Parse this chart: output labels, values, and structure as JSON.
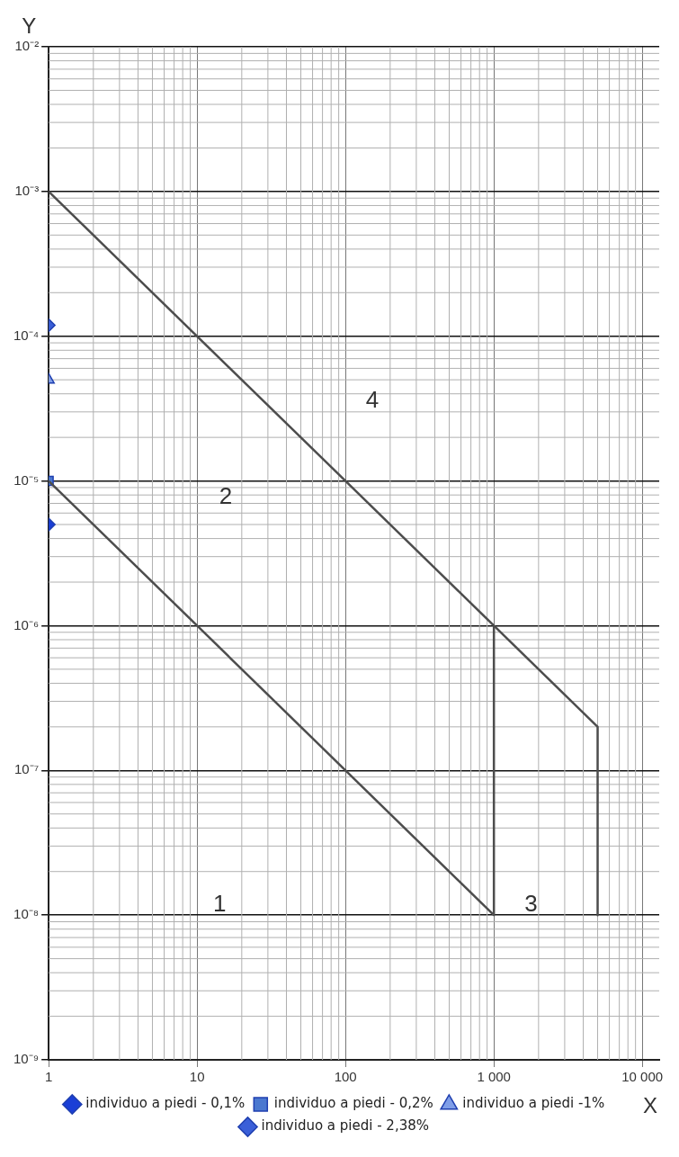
{
  "chart_data": {
    "type": "line",
    "xlabel": "X",
    "ylabel": "Y",
    "log": "xy",
    "grid": true,
    "legend": "bottom",
    "xlim": [
      1,
      13000
    ],
    "xticks": [
      1,
      10,
      100,
      {
        "value": 1000,
        "label": "1 000"
      },
      {
        "value": 10000,
        "label": "10 000"
      }
    ],
    "ylim": [
      1e-09,
      0.01
    ],
    "yticks": [
      {
        "value": 1e-09,
        "label": "10⁻⁹"
      },
      {
        "value": 1e-08,
        "label": "10⁻⁸"
      },
      {
        "value": 1e-07,
        "label": "10⁻⁷"
      },
      {
        "value": 1e-06,
        "label": "10⁻⁶"
      },
      {
        "value": 1e-05,
        "label": "10⁻⁵"
      },
      {
        "value": 0.0001,
        "label": "10⁻⁴"
      },
      {
        "value": 0.001,
        "label": "10⁻³"
      },
      {
        "value": 0.01,
        "label": "10⁻²"
      }
    ],
    "series": [
      {
        "type": "line",
        "color": "#4d4d4d",
        "marker": "none",
        "x": [
          1,
          5000,
          5000
        ],
        "values": [
          0.001,
          2e-07,
          1e-08
        ]
      },
      {
        "type": "line",
        "color": "#4d4d4d",
        "marker": "none",
        "x": [
          1,
          1000,
          1000
        ],
        "values": [
          1e-05,
          1e-08,
          1e-06
        ]
      },
      {
        "type": "scatter",
        "name": "individuo a piedi - 0,1%",
        "color": "#1a3fd6",
        "marker": "diamond",
        "x": [
          1
        ],
        "values": [
          5e-06
        ]
      },
      {
        "type": "scatter",
        "name": "individuo a piedi - 0,2%",
        "color": "#4a78d0",
        "marker": "square",
        "x": [
          1
        ],
        "values": [
          1e-05
        ]
      },
      {
        "type": "scatter",
        "name": "individuo a piedi -1%",
        "color": "#7f9ee8",
        "marker": "triangle",
        "x": [
          1
        ],
        "values": [
          5e-05
        ]
      },
      {
        "type": "scatter",
        "name": "individuo a piedi - 2,38%",
        "color": "#3a5fd8",
        "marker": "diamond",
        "x": [
          1
        ],
        "values": [
          0.000119
        ]
      }
    ],
    "annotations": [
      "1",
      "2",
      "3",
      "4"
    ]
  }
}
